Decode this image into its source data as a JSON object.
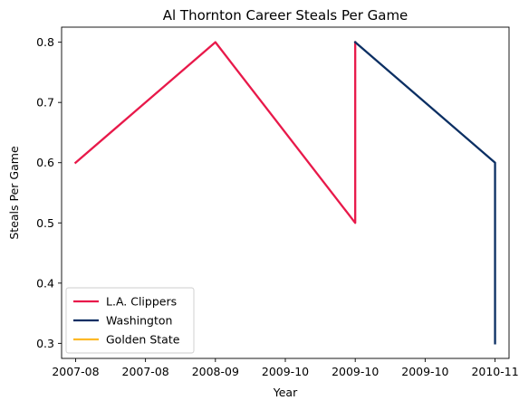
{
  "chart_data": {
    "type": "line",
    "title": "Al Thornton Career Steals Per Game",
    "xlabel": "Year",
    "ylabel": "Steals Per Game",
    "x_tick_labels": [
      "2007-08",
      "2007-08",
      "2008-09",
      "2009-10",
      "2009-10",
      "2009-10",
      "2010-11"
    ],
    "y_ticks": [
      0.3,
      0.4,
      0.5,
      0.6,
      0.7,
      0.8
    ],
    "y_tick_labels": [
      "0.3",
      "0.4",
      "0.5",
      "0.6",
      "0.7",
      "0.8"
    ],
    "xlim": [
      -0.1,
      3.1
    ],
    "ylim": [
      0.275,
      0.825
    ],
    "grid": false,
    "legend_position": "lower-left",
    "series": [
      {
        "name": "L.A. Clippers",
        "color": "#e8194a",
        "x": [
          0,
          1,
          2,
          2
        ],
        "y": [
          0.6,
          0.8,
          0.5,
          0.8
        ]
      },
      {
        "name": "Washington",
        "color": "#0b2f63",
        "x": [
          2,
          3,
          3
        ],
        "y": [
          0.8,
          0.6,
          0.3
        ]
      },
      {
        "name": "Golden State",
        "color": "#fdb927",
        "x": [
          3
        ],
        "y": [
          0.3
        ]
      }
    ]
  }
}
